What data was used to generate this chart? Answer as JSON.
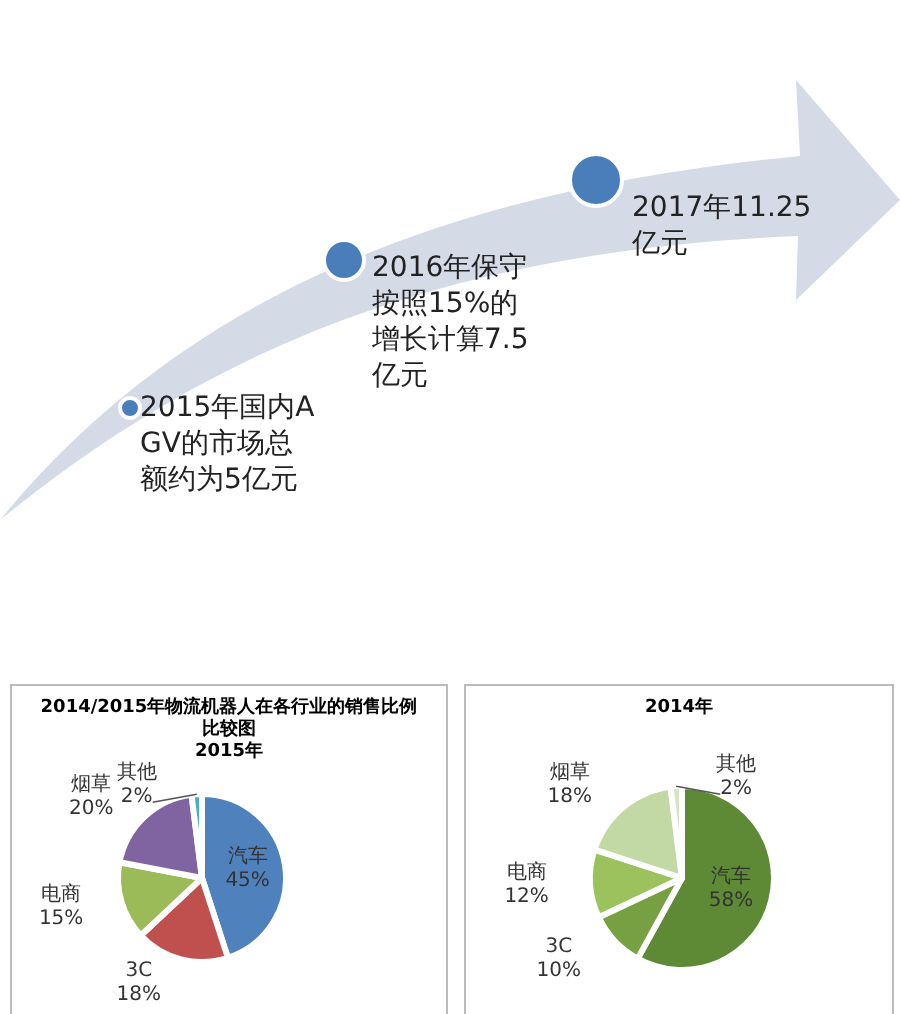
{
  "chart_data": [
    {
      "type": "other",
      "annotations": [
        "2015年国内AGV的市场总额约为5亿元",
        "2016年保守按照15%的增长计算7.5亿元",
        "2017年11.25亿元"
      ]
    },
    {
      "type": "pie",
      "title": "2014/2015年物流机器人在各行业的销售比例比较图",
      "subtitle": "2015年",
      "categories": [
        "汽车",
        "3C",
        "电商",
        "烟草",
        "其他"
      ],
      "values": [
        45,
        18,
        15,
        20,
        2
      ],
      "colors": [
        "#4f81bd",
        "#c0504d",
        "#9bbb59",
        "#8064a2",
        "#4bacc6"
      ],
      "value_labels": [
        "45%",
        "18%",
        "15%",
        "20%",
        "2%"
      ]
    },
    {
      "type": "pie",
      "title": "2014年",
      "categories": [
        "汽车",
        "3C",
        "电商",
        "烟草",
        "其他"
      ],
      "values": [
        58,
        10,
        12,
        18,
        2
      ],
      "colors": [
        "#5e8a35",
        "#77a043",
        "#9bc25c",
        "#c2d9a3",
        "#d6e4c4"
      ],
      "value_labels": [
        "58%",
        "10%",
        "12%",
        "18%",
        "2%"
      ]
    }
  ]
}
